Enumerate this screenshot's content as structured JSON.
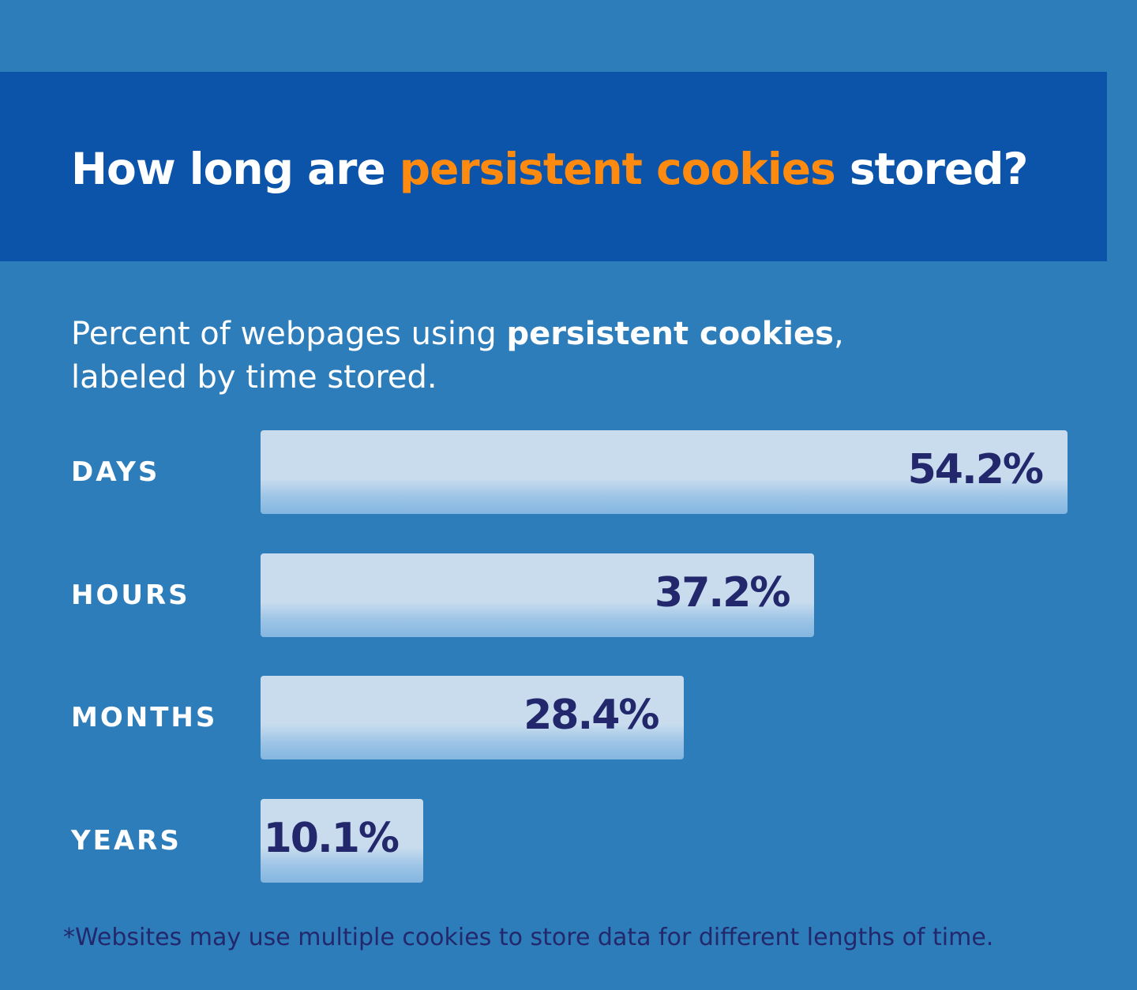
{
  "colors": {
    "background": "#2e7dbb",
    "banner": "#0b54aa",
    "highlight": "#ff8a10",
    "bar": "#c8dcee",
    "value_text": "#22286b"
  },
  "title": {
    "pre": "How long are ",
    "highlight": "persistent cookies",
    "post": " stored?"
  },
  "subtitle": {
    "pre": "Percent of webpages using ",
    "bold": "persistent cookies",
    "post": ",",
    "line2": "labeled by time stored."
  },
  "chart_data": {
    "type": "bar",
    "orientation": "horizontal",
    "categories": [
      "DAYS",
      "HOURS",
      "MONTHS",
      "YEARS"
    ],
    "values": [
      54.2,
      37.2,
      28.4,
      10.1
    ],
    "labels": [
      "54.2%",
      "37.2%",
      "28.4%",
      "10.1%"
    ],
    "unit": "%",
    "grid": false
  },
  "footnote": "*Websites may use multiple cookies to store data for different lengths of time."
}
